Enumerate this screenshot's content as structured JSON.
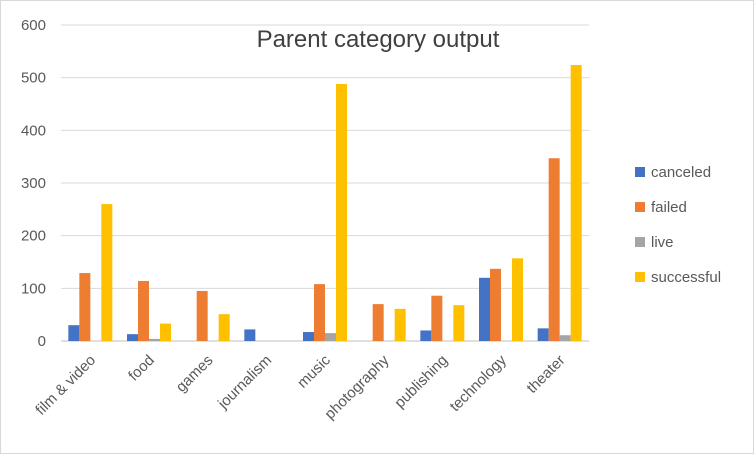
{
  "chart_data": {
    "type": "bar",
    "title": "Parent category output",
    "categories": [
      "film & video",
      "food",
      "games",
      "journalism",
      "music",
      "photography",
      "publishing",
      "technology",
      "theater"
    ],
    "series": [
      {
        "name": "canceled",
        "color": "#4472C4",
        "values": [
          30,
          13,
          0,
          22,
          17,
          0,
          20,
          120,
          24
        ]
      },
      {
        "name": "failed",
        "color": "#ED7D31",
        "values": [
          129,
          114,
          95,
          0,
          108,
          70,
          86,
          137,
          347
        ]
      },
      {
        "name": "live",
        "color": "#A5A5A5",
        "values": [
          0,
          4,
          0,
          0,
          15,
          0,
          0,
          0,
          11
        ]
      },
      {
        "name": "successful",
        "color": "#FFC000",
        "values": [
          260,
          33,
          51,
          0,
          488,
          61,
          68,
          157,
          524
        ]
      }
    ],
    "yticks": [
      0,
      100,
      200,
      300,
      400,
      500,
      600
    ],
    "ylim": [
      0,
      600
    ],
    "legend_position": "right",
    "grid": true
  }
}
